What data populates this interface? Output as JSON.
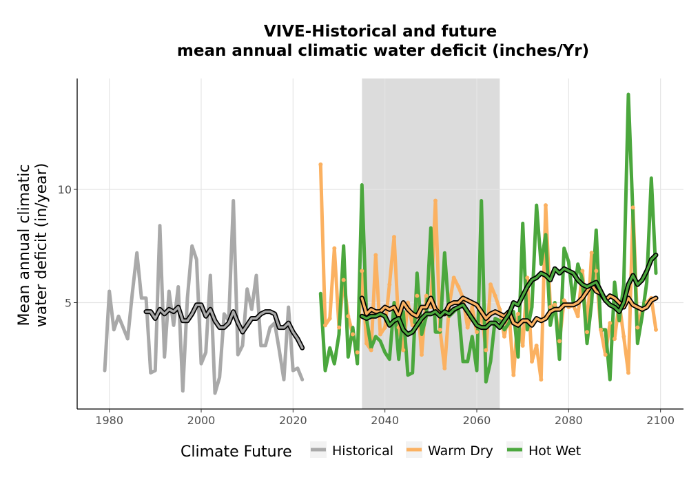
{
  "chart_data": {
    "type": "line",
    "title": "VIVE-Historical and future",
    "subtitle": "mean annual climatic water deficit (inches/Yr)",
    "ylabel_line1": "Mean annual climatic",
    "ylabel_line2": "water deficit (in/year)",
    "xlabel": "",
    "xlim": [
      1973,
      2105
    ],
    "ylim": [
      0.3,
      14.9
    ],
    "x_ticks": [
      1980,
      2000,
      2020,
      2040,
      2060,
      2080,
      2100
    ],
    "y_ticks": [
      5,
      10
    ],
    "grid": true,
    "shaded_period": [
      2035,
      2065
    ],
    "legend_title": "Climate Future",
    "legend_position": "bottom",
    "colors": {
      "Historical": "#a9a9a9",
      "Warm Dry": "#fbb161",
      "Hot Wet": "#4ba73d",
      "rolling_mean_outline": "#000000",
      "shade": "#dcdcdc",
      "grid": "#e5e5e5"
    },
    "series": [
      {
        "name": "Historical",
        "x": [
          1979,
          1980,
          1981,
          1982,
          1983,
          1984,
          1985,
          1986,
          1987,
          1988,
          1989,
          1990,
          1991,
          1992,
          1993,
          1994,
          1995,
          1996,
          1997,
          1998,
          1999,
          2000,
          2001,
          2002,
          2003,
          2004,
          2005,
          2006,
          2007,
          2008,
          2009,
          2010,
          2011,
          2012,
          2013,
          2014,
          2015,
          2016,
          2017,
          2018,
          2019,
          2020,
          2021,
          2022
        ],
        "values": [
          2.0,
          5.5,
          3.8,
          4.4,
          3.9,
          3.4,
          5.4,
          7.2,
          5.2,
          5.2,
          1.9,
          2.0,
          8.4,
          2.6,
          5.5,
          4.0,
          5.7,
          1.1,
          5.2,
          7.5,
          6.9,
          2.3,
          2.8,
          6.2,
          1.0,
          1.7,
          4.5,
          4.2,
          9.5,
          2.7,
          3.1,
          5.6,
          4.7,
          6.2,
          3.1,
          3.1,
          3.9,
          4.1,
          2.9,
          1.6,
          4.8,
          2.0,
          2.1,
          1.6
        ]
      },
      {
        "name": "Warm Dry",
        "x": [
          2026,
          2027,
          2028,
          2029,
          2030,
          2031,
          2032,
          2033,
          2034,
          2035,
          2036,
          2037,
          2038,
          2039,
          2040,
          2041,
          2042,
          2043,
          2044,
          2045,
          2046,
          2047,
          2048,
          2049,
          2050,
          2051,
          2052,
          2053,
          2054,
          2055,
          2056,
          2057,
          2058,
          2059,
          2060,
          2061,
          2062,
          2063,
          2064,
          2065,
          2066,
          2067,
          2068,
          2069,
          2070,
          2071,
          2072,
          2073,
          2074,
          2075,
          2076,
          2077,
          2078,
          2079,
          2080,
          2081,
          2082,
          2083,
          2084,
          2085,
          2086,
          2087,
          2088,
          2089,
          2090,
          2091,
          2092,
          2093,
          2094,
          2095,
          2096,
          2097,
          2098,
          2099
        ],
        "values": [
          11.1,
          4.0,
          4.3,
          7.4,
          3.9,
          6.0,
          4.4,
          3.6,
          2.8,
          6.4,
          3.2,
          2.9,
          7.1,
          3.6,
          3.9,
          5.8,
          7.9,
          3.9,
          2.9,
          5.0,
          4.0,
          5.3,
          2.7,
          5.3,
          4.8,
          9.5,
          3.8,
          2.1,
          4.9,
          6.1,
          5.7,
          5.2,
          3.9,
          4.8,
          3.7,
          4.6,
          2.9,
          5.8,
          5.3,
          4.7,
          3.5,
          4.6,
          1.8,
          4.5,
          3.1,
          6.1,
          2.4,
          3.1,
          1.6,
          9.3,
          4.8,
          4.9,
          3.3,
          5.1,
          4.8,
          4.9,
          4.4,
          6.4,
          3.7,
          7.2,
          6.4,
          3.8,
          2.7,
          4.1,
          3.4,
          5.0,
          3.5,
          1.9,
          9.2,
          3.9,
          4.7,
          5.0,
          5.2,
          3.8
        ]
      },
      {
        "name": "Hot Wet",
        "x": [
          2026,
          2027,
          2028,
          2029,
          2030,
          2031,
          2032,
          2033,
          2034,
          2035,
          2036,
          2037,
          2038,
          2039,
          2040,
          2041,
          2042,
          2043,
          2044,
          2045,
          2046,
          2047,
          2048,
          2049,
          2050,
          2051,
          2052,
          2053,
          2054,
          2055,
          2056,
          2057,
          2058,
          2059,
          2060,
          2061,
          2062,
          2063,
          2064,
          2065,
          2066,
          2067,
          2068,
          2069,
          2070,
          2071,
          2072,
          2073,
          2074,
          2075,
          2076,
          2077,
          2078,
          2079,
          2080,
          2081,
          2082,
          2083,
          2084,
          2085,
          2086,
          2087,
          2088,
          2089,
          2090,
          2091,
          2092,
          2093,
          2094,
          2095,
          2096,
          2097,
          2098,
          2099
        ],
        "values": [
          5.4,
          2.0,
          3.0,
          2.3,
          3.6,
          7.5,
          2.6,
          3.9,
          2.3,
          10.2,
          4.3,
          3.0,
          3.5,
          3.3,
          2.8,
          2.5,
          5.0,
          2.5,
          4.6,
          1.8,
          1.9,
          6.3,
          3.6,
          4.4,
          8.3,
          3.7,
          3.7,
          7.2,
          4.4,
          4.6,
          4.8,
          2.4,
          2.4,
          3.5,
          2.0,
          9.5,
          1.5,
          2.4,
          4.3,
          4.2,
          3.8,
          4.1,
          4.6,
          2.6,
          8.5,
          3.8,
          4.8,
          9.3,
          6.7,
          8.0,
          4.0,
          5.0,
          2.5,
          7.4,
          6.8,
          5.0,
          6.7,
          6.0,
          3.2,
          5.0,
          8.2,
          3.8,
          3.8,
          1.6,
          5.9,
          4.2,
          5.8,
          14.2,
          8.8,
          3.2,
          4.4,
          5.9,
          10.5,
          6.3
        ]
      },
      {
        "name": "Historical rolling mean",
        "x": [
          1988,
          1989,
          1990,
          1991,
          1992,
          1993,
          1994,
          1995,
          1996,
          1997,
          1998,
          1999,
          2000,
          2001,
          2002,
          2003,
          2004,
          2005,
          2006,
          2007,
          2008,
          2009,
          2010,
          2011,
          2012,
          2013,
          2014,
          2015,
          2016,
          2017,
          2018,
          2019,
          2020,
          2021,
          2022
        ],
        "values": [
          4.6,
          4.6,
          4.3,
          4.7,
          4.5,
          4.7,
          4.6,
          4.8,
          4.2,
          4.2,
          4.5,
          4.9,
          4.9,
          4.4,
          4.7,
          4.2,
          3.9,
          3.9,
          4.1,
          4.6,
          4.1,
          3.7,
          4.0,
          4.3,
          4.3,
          4.5,
          4.6,
          4.6,
          4.5,
          3.9,
          3.9,
          4.1,
          3.7,
          3.4,
          3.0
        ]
      },
      {
        "name": "Warm Dry rolling mean",
        "x": [
          2035,
          2036,
          2037,
          2038,
          2039,
          2040,
          2041,
          2042,
          2043,
          2044,
          2045,
          2046,
          2047,
          2048,
          2049,
          2050,
          2051,
          2052,
          2053,
          2054,
          2055,
          2056,
          2057,
          2058,
          2059,
          2060,
          2061,
          2062,
          2063,
          2064,
          2065,
          2066,
          2067,
          2068,
          2069,
          2070,
          2071,
          2072,
          2073,
          2074,
          2075,
          2076,
          2077,
          2078,
          2079,
          2080,
          2081,
          2082,
          2083,
          2084,
          2085,
          2086,
          2087,
          2088,
          2089,
          2090,
          2091,
          2092,
          2093,
          2094,
          2095,
          2096,
          2097,
          2098,
          2099
        ],
        "values": [
          5.2,
          4.5,
          4.7,
          4.6,
          4.6,
          4.8,
          4.7,
          4.8,
          4.4,
          5.0,
          4.7,
          4.5,
          4.4,
          4.8,
          4.8,
          5.2,
          4.7,
          4.5,
          4.5,
          4.9,
          5.0,
          5.0,
          5.2,
          5.1,
          5.0,
          4.9,
          4.6,
          4.3,
          4.5,
          4.6,
          4.5,
          4.4,
          4.6,
          4.1,
          4.0,
          4.2,
          4.2,
          4.0,
          4.3,
          4.2,
          4.3,
          4.6,
          4.7,
          4.7,
          4.9,
          4.9,
          4.9,
          5.0,
          5.2,
          5.5,
          5.8,
          5.5,
          5.4,
          5.1,
          5.3,
          5.2,
          5.0,
          4.8,
          5.2,
          4.9,
          4.8,
          4.7,
          4.8,
          5.1,
          5.2
        ]
      },
      {
        "name": "Hot Wet rolling mean",
        "x": [
          2035,
          2036,
          2037,
          2038,
          2039,
          2040,
          2041,
          2042,
          2043,
          2044,
          2045,
          2046,
          2047,
          2048,
          2049,
          2050,
          2051,
          2052,
          2053,
          2054,
          2055,
          2056,
          2057,
          2058,
          2059,
          2060,
          2061,
          2062,
          2063,
          2064,
          2065,
          2066,
          2067,
          2068,
          2069,
          2070,
          2071,
          2072,
          2073,
          2074,
          2075,
          2076,
          2077,
          2078,
          2079,
          2080,
          2081,
          2082,
          2083,
          2084,
          2085,
          2086,
          2087,
          2088,
          2089,
          2090,
          2091,
          2092,
          2093,
          2094,
          2095,
          2096,
          2097,
          2098,
          2099
        ],
        "values": [
          4.4,
          4.3,
          4.4,
          4.4,
          4.5,
          4.4,
          4.0,
          4.2,
          4.3,
          3.8,
          3.6,
          3.7,
          4.0,
          4.3,
          4.5,
          4.5,
          4.6,
          4.4,
          4.6,
          4.5,
          4.7,
          4.8,
          4.9,
          4.6,
          4.3,
          4.0,
          3.9,
          3.9,
          4.1,
          4.1,
          3.9,
          4.2,
          4.5,
          5.0,
          4.9,
          5.3,
          5.7,
          6.0,
          6.1,
          6.3,
          6.2,
          6.0,
          6.5,
          6.3,
          6.5,
          6.4,
          6.3,
          6.0,
          5.8,
          5.7,
          5.8,
          5.9,
          5.5,
          5.1,
          4.9,
          4.8,
          4.6,
          5.0,
          5.8,
          6.2,
          5.8,
          6.0,
          6.4,
          6.9,
          7.1
        ]
      }
    ]
  }
}
